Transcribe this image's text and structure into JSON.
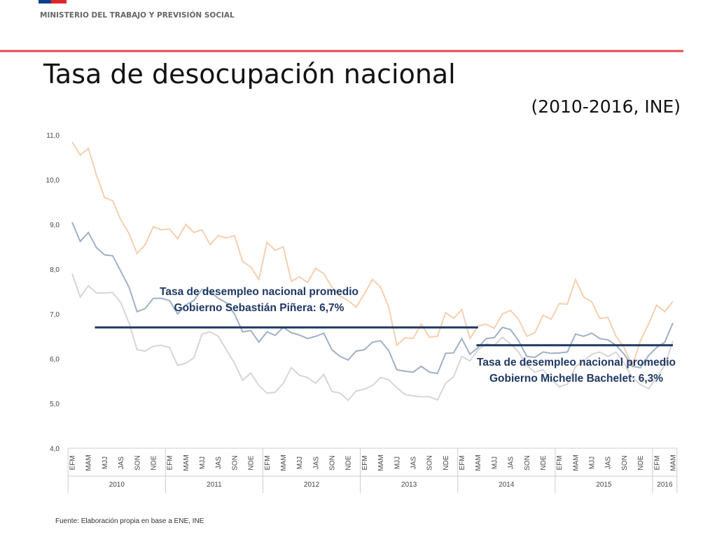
{
  "header": {
    "ministry": "MINISTERIO DEL TRABAJO Y PREVISIÓN SOCIAL"
  },
  "chart_data": {
    "type": "line",
    "title": "Tasa de desocupación nacional",
    "subtitle": "(2010-2016, INE)",
    "source": "Fuente: Elaboración propia en base a ENE, INE",
    "ylim": [
      4,
      11
    ],
    "yticks": [
      {
        "value": 4,
        "label": "4,0"
      },
      {
        "value": 5,
        "label": "5,0"
      },
      {
        "value": 6,
        "label": "6,0"
      },
      {
        "value": 7,
        "label": "7,0"
      },
      {
        "value": 8,
        "label": "8,0"
      },
      {
        "value": 9,
        "label": "9,0"
      },
      {
        "value": 10,
        "label": "10,0"
      },
      {
        "value": 11,
        "label": "11,0"
      }
    ],
    "categories": [
      "EFM",
      null,
      "MAM",
      null,
      "MJJ",
      null,
      "JAS",
      null,
      "SON",
      null,
      "NDE",
      null,
      "EFM",
      null,
      "MAM",
      null,
      "MJJ",
      null,
      "JAS",
      null,
      "SON",
      null,
      "NDE",
      null,
      "EFM",
      null,
      "MAM",
      null,
      "MJJ",
      null,
      "JAS",
      null,
      "SON",
      null,
      "NDE",
      null,
      "EFM",
      null,
      "MAM",
      null,
      "MJJ",
      null,
      "JAS",
      null,
      "SON",
      null,
      "NDE",
      null,
      "EFM",
      null,
      "MAM",
      null,
      "MJJ",
      null,
      "JAS",
      null,
      "SON",
      null,
      "NDE",
      null,
      "EFM",
      null,
      "MAM",
      null,
      "MJJ",
      null,
      "JAS",
      null,
      "SON",
      null,
      "NDE",
      null,
      "EFM",
      null,
      "MAM"
    ],
    "years": [
      "2010",
      "2011",
      "2012",
      "2013",
      "2014",
      "2015",
      "2016"
    ],
    "series": [
      {
        "color": "#f7cfae",
        "values": [
          10.84,
          10.55,
          10.7,
          10.1,
          9.6,
          9.53,
          9.1,
          8.8,
          8.35,
          8.55,
          8.95,
          8.88,
          8.9,
          8.68,
          9.0,
          8.82,
          8.88,
          8.55,
          8.75,
          8.7,
          8.75,
          8.17,
          8.05,
          7.77,
          8.6,
          8.42,
          8.5,
          7.73,
          7.83,
          7.7,
          8.02,
          7.9,
          7.6,
          7.4,
          7.3,
          7.15,
          7.45,
          7.77,
          7.6,
          7.15,
          6.3,
          6.47,
          6.45,
          6.78,
          6.48,
          6.5,
          7.03,
          6.9,
          7.1,
          6.45,
          6.73,
          6.77,
          6.68,
          7.0,
          7.08,
          6.88,
          6.5,
          6.58,
          6.97,
          6.88,
          7.23,
          7.22,
          7.77,
          7.38,
          7.27,
          6.9,
          6.92,
          6.5,
          6.25,
          5.83,
          6.4,
          6.77,
          7.2,
          7.05,
          7.28
        ]
      },
      {
        "color": "#9fb1c7",
        "values": [
          9.05,
          8.62,
          8.82,
          8.48,
          8.32,
          8.3,
          7.95,
          7.6,
          7.05,
          7.12,
          7.35,
          7.35,
          7.3,
          7.0,
          7.2,
          7.3,
          7.55,
          7.5,
          7.35,
          7.25,
          7.0,
          6.6,
          6.63,
          6.37,
          6.6,
          6.52,
          6.7,
          6.58,
          6.53,
          6.45,
          6.5,
          6.57,
          6.2,
          6.05,
          5.97,
          6.17,
          6.2,
          6.37,
          6.4,
          6.18,
          5.75,
          5.72,
          5.7,
          5.83,
          5.7,
          5.67,
          6.12,
          6.13,
          6.45,
          6.1,
          6.25,
          6.45,
          6.47,
          6.7,
          6.65,
          6.4,
          6.05,
          6.03,
          6.15,
          6.12,
          6.13,
          6.15,
          6.55,
          6.5,
          6.57,
          6.45,
          6.42,
          6.3,
          6.1,
          5.83,
          5.8,
          6.07,
          6.25,
          6.37,
          6.8
        ]
      },
      {
        "color": "#d6d6d6",
        "values": [
          7.9,
          7.38,
          7.63,
          7.47,
          7.47,
          7.48,
          7.25,
          6.8,
          6.2,
          6.17,
          6.28,
          6.3,
          6.25,
          5.85,
          5.9,
          6.02,
          6.55,
          6.6,
          6.5,
          6.2,
          5.9,
          5.52,
          5.68,
          5.4,
          5.23,
          5.25,
          5.45,
          5.8,
          5.63,
          5.58,
          5.45,
          5.65,
          5.27,
          5.23,
          5.07,
          5.28,
          5.32,
          5.4,
          5.58,
          5.53,
          5.35,
          5.2,
          5.17,
          5.15,
          5.15,
          5.08,
          5.45,
          5.6,
          6.05,
          5.95,
          6.2,
          6.33,
          6.3,
          6.48,
          6.33,
          6.15,
          5.85,
          5.7,
          5.75,
          5.55,
          5.37,
          5.43,
          5.82,
          5.95,
          6.1,
          6.15,
          6.05,
          6.15,
          5.9,
          5.58,
          5.42,
          5.33,
          5.58,
          5.85,
          6.4
        ]
      }
    ],
    "reference_lines": [
      {
        "value": 6.7,
        "color": "#1f3864",
        "label": [
          "Tasa de desempleo nacional promedio",
          "Gobierno Sebastián Piñera: 6,7%"
        ]
      },
      {
        "value": 6.3,
        "color": "#1f3864",
        "label": [
          "Tasa de desempleo nacional promedio",
          "Gobierno Michelle Bachelet: 6,3%"
        ]
      }
    ]
  }
}
